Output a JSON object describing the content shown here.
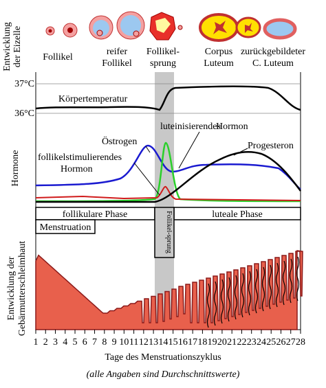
{
  "ovum": {
    "axis_label": [
      "Entwicklung",
      "der Eizelle"
    ],
    "stages": [
      [
        "Follikel"
      ],
      [
        "reifer",
        "Follikel"
      ],
      [
        "Follikel-",
        "sprung"
      ],
      [
        "Corpus",
        "Luteum"
      ],
      [
        "zurückgebildeter",
        "C. Luteum"
      ]
    ]
  },
  "temperature": {
    "ticks": [
      "37°C",
      "36°C"
    ],
    "label": "Körpertemperatur"
  },
  "hormones": {
    "axis_label": "Hormone",
    "lh": [
      "luteinisierendes",
      "Hormon"
    ],
    "estrogen": "Östrogen",
    "fsh": [
      "follikelstimulierendes",
      "Hormon"
    ],
    "progesterone": "Progesteron"
  },
  "phases": {
    "follicular": "follikulare Phase",
    "menstruation": "Menstruation",
    "ovulation": "Follikel-sprung",
    "luteal": "luteale Phase"
  },
  "endometrium": {
    "axis_label": [
      "Entwicklung der",
      "Gebärmutterschleimhaut"
    ]
  },
  "x_axis": {
    "days": [
      1,
      2,
      3,
      4,
      5,
      6,
      7,
      8,
      9,
      10,
      11,
      12,
      13,
      14,
      15,
      16,
      17,
      18,
      19,
      20,
      21,
      22,
      23,
      24,
      25,
      26,
      27,
      28
    ],
    "label": "Tage des Menstruationszyklus"
  },
  "note": "(alle Angaben sind Durchschnittswerte)"
}
